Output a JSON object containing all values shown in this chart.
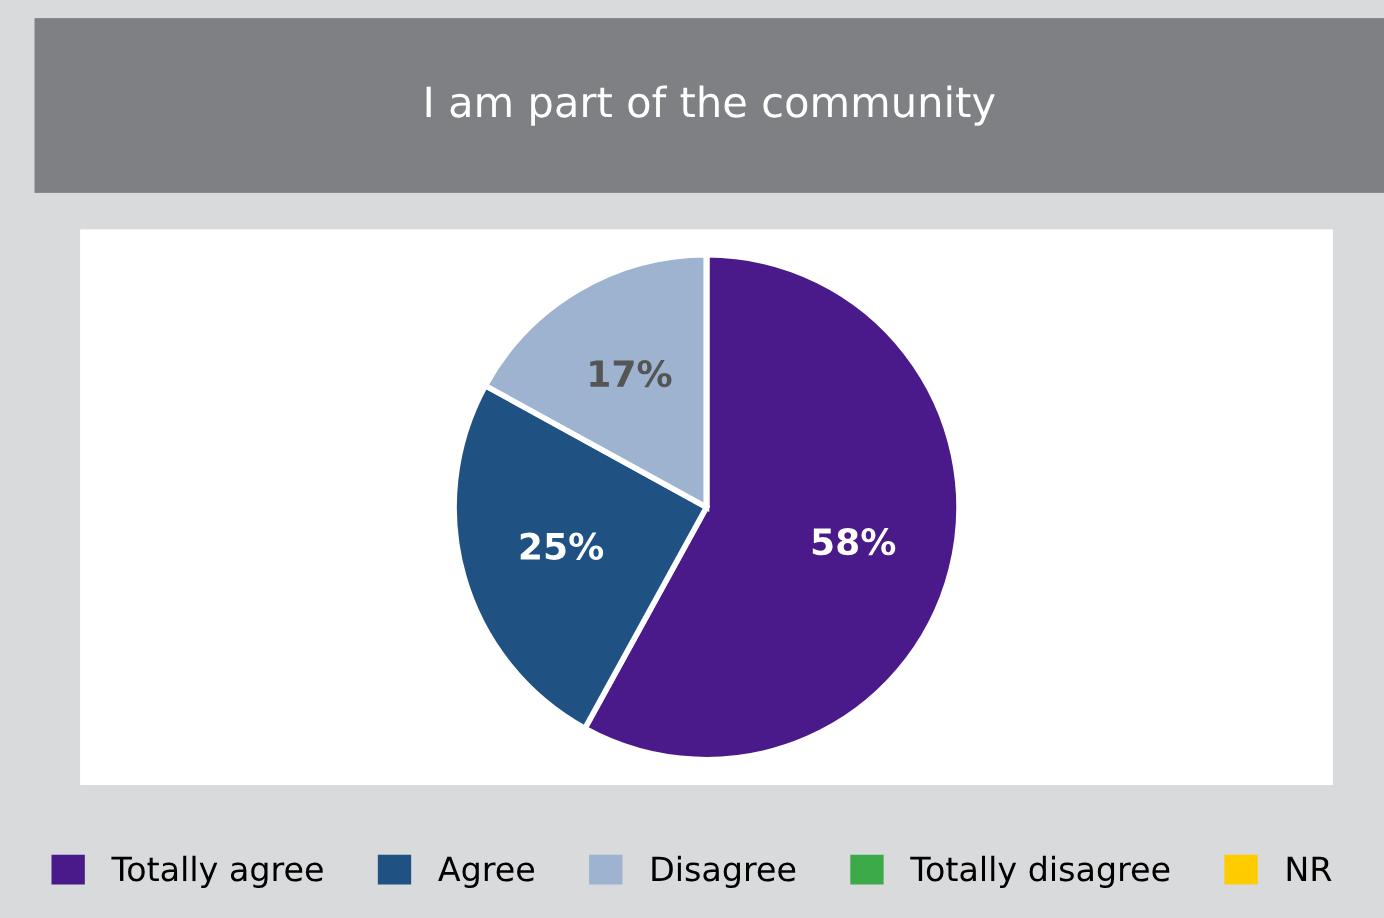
{
  "chart_data": {
    "type": "pie",
    "title": "I am part of the community",
    "categories": [
      "Totally agree",
      "Agree",
      "Disagree",
      "Totally disagree",
      "NR"
    ],
    "values": [
      58,
      25,
      17,
      0,
      0
    ],
    "colors": [
      "#4b1a8a",
      "#1f5283",
      "#9db3cf",
      "#3daa4a",
      "#ffcc00"
    ],
    "value_labels": [
      "58%",
      "25%",
      "17%",
      null,
      null
    ],
    "legend": "bottom"
  }
}
